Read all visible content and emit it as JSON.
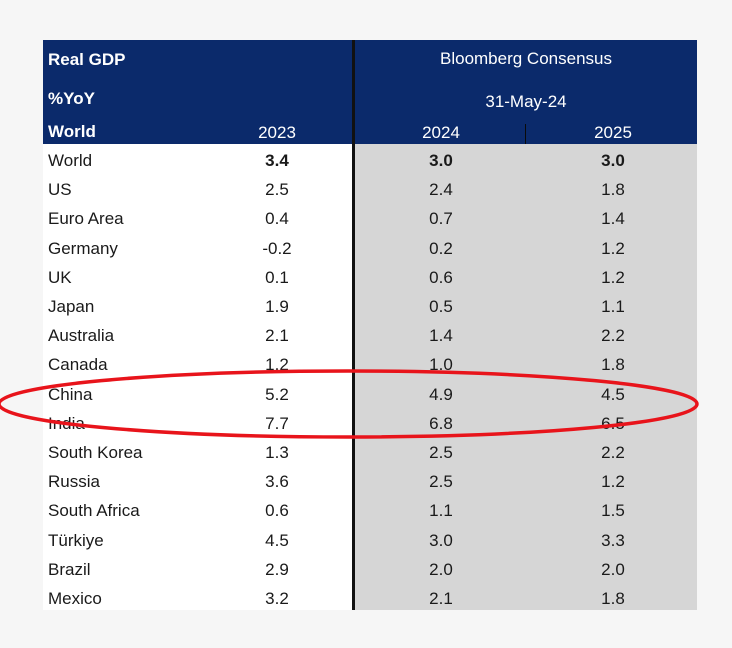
{
  "header": {
    "title_line1": "Real GDP",
    "title_line2": "%YoY",
    "region_label": "World",
    "col_2023": "2023",
    "consensus_title": "Bloomberg Consensus",
    "consensus_date": "31-May-24",
    "col_2024": "2024",
    "col_2025": "2025"
  },
  "rows": [
    {
      "country": "World",
      "y2023": "3.4",
      "y2024": "3.0",
      "y2025": "3.0"
    },
    {
      "country": "US",
      "y2023": "2.5",
      "y2024": "2.4",
      "y2025": "1.8"
    },
    {
      "country": "Euro Area",
      "y2023": "0.4",
      "y2024": "0.7",
      "y2025": "1.4"
    },
    {
      "country": "Germany",
      "y2023": "-0.2",
      "y2024": "0.2",
      "y2025": "1.2"
    },
    {
      "country": "UK",
      "y2023": "0.1",
      "y2024": "0.6",
      "y2025": "1.2"
    },
    {
      "country": "Japan",
      "y2023": "1.9",
      "y2024": "0.5",
      "y2025": "1.1"
    },
    {
      "country": "Australia",
      "y2023": "2.1",
      "y2024": "1.4",
      "y2025": "2.2"
    },
    {
      "country": "Canada",
      "y2023": "1.2",
      "y2024": "1.0",
      "y2025": "1.8"
    },
    {
      "country": "China",
      "y2023": "5.2",
      "y2024": "4.9",
      "y2025": "4.5"
    },
    {
      "country": "India",
      "y2023": "7.7",
      "y2024": "6.8",
      "y2025": "6.5"
    },
    {
      "country": "South Korea",
      "y2023": "1.3",
      "y2024": "2.5",
      "y2025": "2.2"
    },
    {
      "country": "Russia",
      "y2023": "3.6",
      "y2024": "2.5",
      "y2025": "1.2"
    },
    {
      "country": "South Africa",
      "y2023": "0.6",
      "y2024": "1.1",
      "y2025": "1.5"
    },
    {
      "country": "Türkiye",
      "y2023": "4.5",
      "y2024": "3.0",
      "y2025": "3.3"
    },
    {
      "country": "Brazil",
      "y2023": "2.9",
      "y2024": "2.0",
      "y2025": "2.0"
    },
    {
      "country": "Mexico",
      "y2023": "3.2",
      "y2024": "2.1",
      "y2025": "1.8"
    }
  ],
  "colors": {
    "header_bg": "#0b2a6b",
    "consensus_bg": "#d6d6d6",
    "highlight_oval": "#e8141b"
  }
}
